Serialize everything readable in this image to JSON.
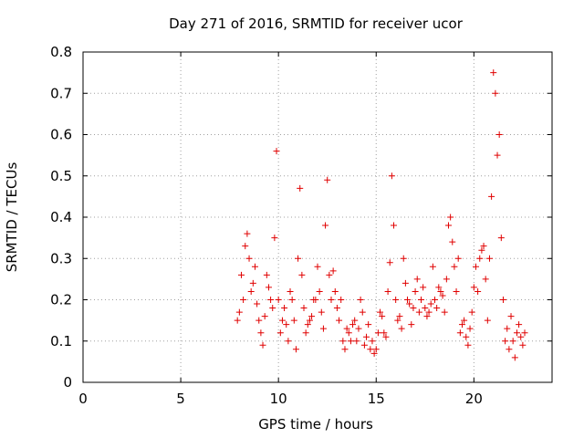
{
  "chart_data": {
    "type": "scatter",
    "title": "Day 271 of 2016, SRMTID for receiver ucor",
    "xlabel": "GPS time / hours",
    "ylabel": "SRMTID / TECUs",
    "xlim": [
      0,
      24
    ],
    "ylim": [
      0,
      0.8
    ],
    "xticks": [
      0,
      5,
      10,
      15,
      20
    ],
    "yticks": [
      0,
      0.1,
      0.2,
      0.3,
      0.4,
      0.5,
      0.6,
      0.7,
      0.8
    ],
    "xtick_labels": [
      "0",
      "5",
      "10",
      "15",
      "20"
    ],
    "ytick_labels": [
      "0",
      "0.1",
      "0.2",
      "0.3",
      "0.4",
      "0.5",
      "0.6",
      "0.7",
      "0.8"
    ],
    "grid": true,
    "marker": "plus",
    "marker_color": "#e00000",
    "series": [
      {
        "x": [
          7.9,
          8.0,
          8.1,
          8.2,
          8.3,
          8.4,
          8.5,
          8.6,
          8.7,
          8.8,
          8.9,
          9.0,
          9.1,
          9.2,
          9.3,
          9.4,
          9.5,
          9.6,
          9.7,
          9.8,
          9.9,
          10.0,
          10.1,
          10.2,
          10.3,
          10.4,
          10.5,
          10.6,
          10.7,
          10.8,
          10.9,
          11.0,
          11.1,
          11.2,
          11.3,
          11.4,
          11.5,
          11.6,
          11.7,
          11.8,
          11.9,
          12.0,
          12.1,
          12.2,
          12.3,
          12.4,
          12.5,
          12.6,
          12.7,
          12.8,
          12.9,
          13.0,
          13.1,
          13.2,
          13.3,
          13.4,
          13.5,
          13.6,
          13.7,
          13.8,
          13.9,
          14.0,
          14.1,
          14.2,
          14.3,
          14.4,
          14.5,
          14.6,
          14.7,
          14.8,
          14.9,
          15.0,
          15.1,
          15.2,
          15.3,
          15.4,
          15.5,
          15.6,
          15.7,
          15.8,
          15.9,
          16.0,
          16.1,
          16.2,
          16.3,
          16.4,
          16.5,
          16.6,
          16.7,
          16.8,
          16.9,
          17.0,
          17.1,
          17.2,
          17.3,
          17.4,
          17.5,
          17.6,
          17.7,
          17.8,
          17.9,
          18.0,
          18.1,
          18.2,
          18.3,
          18.4,
          18.5,
          18.6,
          18.7,
          18.8,
          18.9,
          19.0,
          19.1,
          19.2,
          19.3,
          19.4,
          19.5,
          19.6,
          19.7,
          19.8,
          19.9,
          20.0,
          20.1,
          20.2,
          20.3,
          20.4,
          20.5,
          20.6,
          20.7,
          20.8,
          20.9,
          21.0,
          21.1,
          21.2,
          21.3,
          21.4,
          21.5,
          21.6,
          21.7,
          21.8,
          21.9,
          22.0,
          22.1,
          22.2,
          22.3,
          22.4,
          22.5,
          22.6
        ],
        "y": [
          0.15,
          0.17,
          0.26,
          0.2,
          0.33,
          0.36,
          0.3,
          0.22,
          0.24,
          0.28,
          0.19,
          0.15,
          0.12,
          0.09,
          0.16,
          0.26,
          0.23,
          0.2,
          0.18,
          0.35,
          0.56,
          0.2,
          0.12,
          0.15,
          0.18,
          0.14,
          0.1,
          0.22,
          0.2,
          0.15,
          0.08,
          0.3,
          0.47,
          0.26,
          0.18,
          0.12,
          0.14,
          0.15,
          0.16,
          0.2,
          0.2,
          0.28,
          0.22,
          0.17,
          0.13,
          0.38,
          0.49,
          0.26,
          0.2,
          0.27,
          0.22,
          0.18,
          0.15,
          0.2,
          0.1,
          0.08,
          0.13,
          0.12,
          0.1,
          0.14,
          0.15,
          0.1,
          0.13,
          0.2,
          0.17,
          0.09,
          0.11,
          0.14,
          0.08,
          0.1,
          0.07,
          0.08,
          0.12,
          0.17,
          0.16,
          0.12,
          0.11,
          0.22,
          0.29,
          0.5,
          0.38,
          0.2,
          0.15,
          0.16,
          0.13,
          0.3,
          0.24,
          0.2,
          0.19,
          0.14,
          0.18,
          0.22,
          0.25,
          0.17,
          0.2,
          0.23,
          0.18,
          0.16,
          0.17,
          0.19,
          0.28,
          0.2,
          0.18,
          0.23,
          0.22,
          0.21,
          0.17,
          0.25,
          0.38,
          0.4,
          0.34,
          0.28,
          0.22,
          0.3,
          0.12,
          0.14,
          0.15,
          0.11,
          0.09,
          0.13,
          0.17,
          0.23,
          0.28,
          0.22,
          0.3,
          0.32,
          0.33,
          0.25,
          0.15,
          0.3,
          0.45,
          0.75,
          0.7,
          0.55,
          0.6,
          0.35,
          0.2,
          0.1,
          0.13,
          0.08,
          0.16,
          0.1,
          0.06,
          0.12,
          0.14,
          0.11,
          0.09,
          0.12
        ]
      }
    ]
  }
}
